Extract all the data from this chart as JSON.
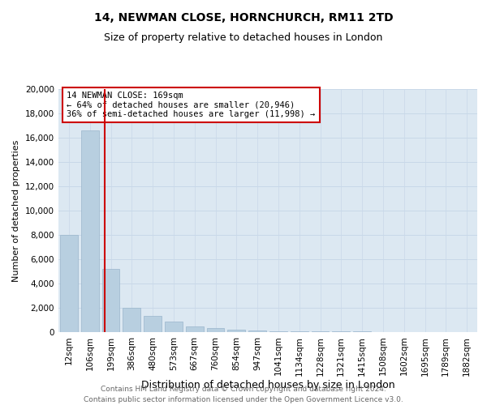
{
  "title": "14, NEWMAN CLOSE, HORNCHURCH, RM11 2TD",
  "subtitle": "Size of property relative to detached houses in London",
  "xlabel": "Distribution of detached houses by size in London",
  "ylabel": "Number of detached properties",
  "annotation_line1": "14 NEWMAN CLOSE: 169sqm",
  "annotation_line2": "← 64% of detached houses are smaller (20,946)",
  "annotation_line3": "36% of semi-detached houses are larger (11,998) →",
  "footer_line1": "Contains HM Land Registry data © Crown copyright and database right 2024.",
  "footer_line2": "Contains public sector information licensed under the Open Government Licence v3.0.",
  "ylim": [
    0,
    20000
  ],
  "yticks": [
    0,
    2000,
    4000,
    6000,
    8000,
    10000,
    12000,
    14000,
    16000,
    18000,
    20000
  ],
  "bar_color": "#b8cfe0",
  "bar_edge_color": "#9ab5cc",
  "marker_color": "#cc0000",
  "annotation_box_edgecolor": "#cc0000",
  "grid_color": "#c8d8e8",
  "background_color": "#dce8f2",
  "title_fontsize": 10,
  "subtitle_fontsize": 9,
  "ylabel_fontsize": 8,
  "xlabel_fontsize": 9,
  "tick_fontsize": 7.5,
  "categories": [
    "12sqm",
    "106sqm",
    "199sqm",
    "386sqm",
    "480sqm",
    "573sqm",
    "667sqm",
    "760sqm",
    "854sqm",
    "947sqm",
    "1041sqm",
    "1134sqm",
    "1228sqm",
    "1321sqm",
    "1415sqm",
    "1508sqm",
    "1602sqm",
    "1695sqm",
    "1789sqm",
    "1882sqm"
  ],
  "values": [
    8000,
    16600,
    5200,
    2000,
    1350,
    850,
    500,
    320,
    200,
    130,
    90,
    70,
    55,
    45,
    35,
    25,
    20,
    15,
    10,
    8
  ],
  "red_line_x": 1.72
}
